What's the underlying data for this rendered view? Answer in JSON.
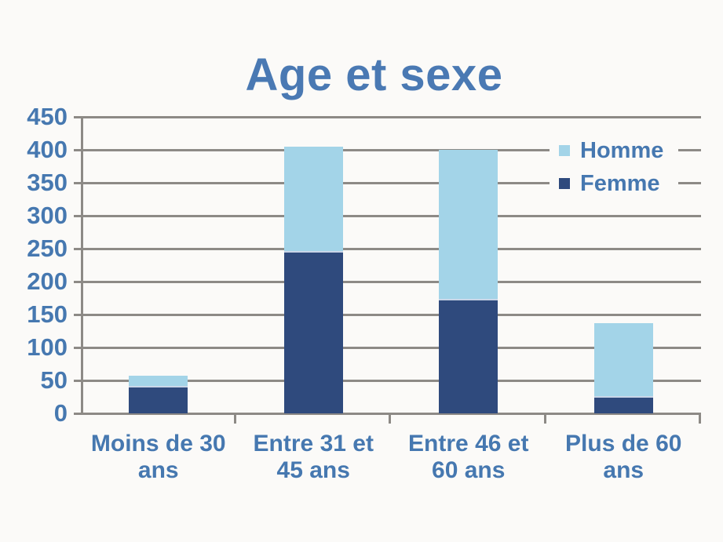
{
  "page": {
    "background_color": "#fbfaf8"
  },
  "chart_data": {
    "type": "bar",
    "stacked": true,
    "title": "Age et sexe",
    "title_color": "#4a79b3",
    "axis_text_color": "#4678b0",
    "gridline_color": "#8d8a86",
    "categories": [
      "Moins de 30 ans",
      "Entre 31 et 45 ans",
      "Entre 46 et 60 ans",
      "Plus de 60 ans"
    ],
    "category_lines": [
      [
        "Moins de 30",
        "ans"
      ],
      [
        "Entre 31 et",
        "45 ans"
      ],
      [
        "Entre 46 et",
        "60 ans"
      ],
      [
        "Plus de 60",
        "ans"
      ]
    ],
    "series": [
      {
        "name": "Homme",
        "color": "#a3d4e8",
        "values": [
          17,
          160,
          227,
          112
        ]
      },
      {
        "name": "Femme",
        "color": "#2f4a7d",
        "values": [
          40,
          245,
          173,
          25
        ]
      }
    ],
    "stack_order_bottom_to_top": [
      "Femme",
      "Homme"
    ],
    "totals": [
      57,
      405,
      400,
      137
    ],
    "y_ticks": [
      450,
      400,
      350,
      300,
      250,
      200,
      150,
      100,
      50,
      0
    ],
    "ylim": [
      0,
      450
    ],
    "xlabel": "",
    "ylabel": "",
    "grid": "horizontal",
    "legend_position": "inside-top-right",
    "legend_labels": [
      "Homme",
      "Femme"
    ]
  }
}
